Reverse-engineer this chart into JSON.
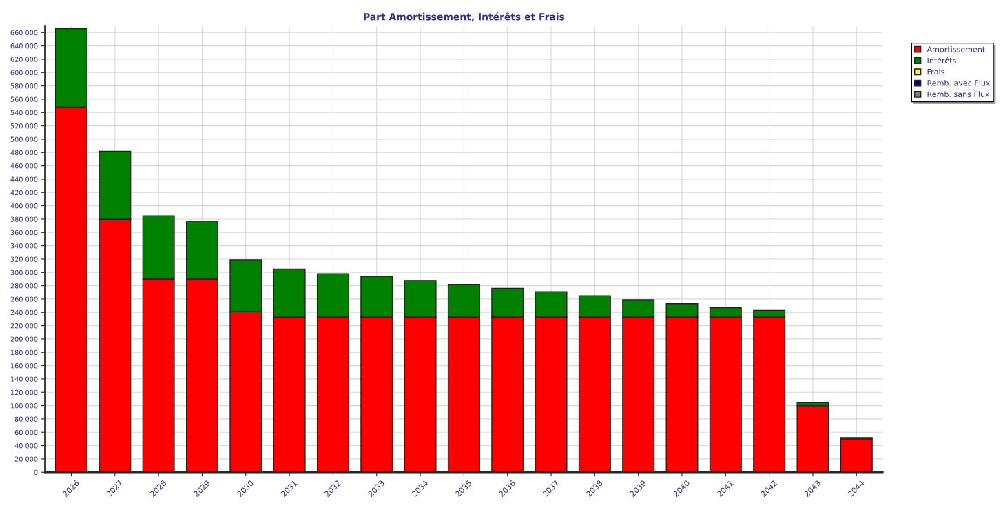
{
  "chart_data": {
    "type": "bar",
    "title": "Part Amortissement, Intérêts et Frais",
    "stacked": true,
    "categories": [
      "2026",
      "2027",
      "2028",
      "2029",
      "2030",
      "2031",
      "2032",
      "2033",
      "2034",
      "2035",
      "2036",
      "2037",
      "2038",
      "2039",
      "2040",
      "2041",
      "2042",
      "2043",
      "2044"
    ],
    "series": [
      {
        "name": "Amortissement",
        "color": "#ff0000",
        "values": [
          548000,
          380000,
          290000,
          290000,
          241000,
          233000,
          233000,
          233000,
          233000,
          233000,
          233000,
          233000,
          233000,
          233000,
          233000,
          233000,
          233000,
          100000,
          50000
        ]
      },
      {
        "name": "Intérêts",
        "color": "#008000",
        "values": [
          118000,
          102000,
          95000,
          87000,
          78000,
          72000,
          65000,
          61000,
          55000,
          49000,
          43000,
          38000,
          32000,
          26000,
          20000,
          14000,
          10000,
          5000,
          2000
        ]
      },
      {
        "name": "Frais",
        "color": "#ffff00",
        "values": [
          null,
          null,
          null,
          null,
          null,
          null,
          null,
          null,
          null,
          null,
          null,
          null,
          null,
          null,
          null,
          null,
          null,
          null,
          null
        ]
      },
      {
        "name": "Remb. avec Flux",
        "color": "#000080",
        "values": [
          null,
          null,
          null,
          null,
          null,
          null,
          null,
          null,
          null,
          null,
          null,
          null,
          null,
          null,
          null,
          null,
          null,
          null,
          null
        ]
      },
      {
        "name": "Remb. sans Flux",
        "color": "#808080",
        "values": [
          null,
          null,
          null,
          null,
          null,
          null,
          null,
          null,
          null,
          null,
          null,
          null,
          null,
          null,
          null,
          null,
          null,
          null,
          null
        ]
      }
    ],
    "ylim": [
      0,
      670000
    ],
    "yticks": [
      {
        "value": 0,
        "label": "0"
      },
      {
        "value": 20000,
        "label": "20 000"
      },
      {
        "value": 40000,
        "label": "40 000"
      },
      {
        "value": 60000,
        "label": "60 000"
      },
      {
        "value": 80000,
        "label": "80 000"
      },
      {
        "value": 100000,
        "label": "100 000"
      },
      {
        "value": 120000,
        "label": "120 000"
      },
      {
        "value": 140000,
        "label": "140 000"
      },
      {
        "value": 160000,
        "label": "160 000"
      },
      {
        "value": 180000,
        "label": "180 000"
      },
      {
        "value": 200000,
        "label": "200 000"
      },
      {
        "value": 220000,
        "label": "220 000"
      },
      {
        "value": 240000,
        "label": "240 000"
      },
      {
        "value": 260000,
        "label": "260 000"
      },
      {
        "value": 280000,
        "label": "280 000"
      },
      {
        "value": 300000,
        "label": "300 000"
      },
      {
        "value": 320000,
        "label": "320 000"
      },
      {
        "value": 340000,
        "label": "340 000"
      },
      {
        "value": 360000,
        "label": "360 000"
      },
      {
        "value": 380000,
        "label": "380 000"
      },
      {
        "value": 400000,
        "label": "400 000"
      },
      {
        "value": 420000,
        "label": "420 000"
      },
      {
        "value": 440000,
        "label": "440 000"
      },
      {
        "value": 460000,
        "label": "460 000"
      },
      {
        "value": 480000,
        "label": "480 000"
      },
      {
        "value": 500000,
        "label": "500 000"
      },
      {
        "value": 520000,
        "label": "520 000"
      },
      {
        "value": 540000,
        "label": "540 000"
      },
      {
        "value": 560000,
        "label": "560 000"
      },
      {
        "value": 580000,
        "label": "580 000"
      },
      {
        "value": 600000,
        "label": "600 000"
      },
      {
        "value": 620000,
        "label": "620 000"
      },
      {
        "value": 640000,
        "label": "640 000"
      },
      {
        "value": 660000,
        "label": "660 000"
      }
    ],
    "grid": true,
    "legend": "top right"
  }
}
